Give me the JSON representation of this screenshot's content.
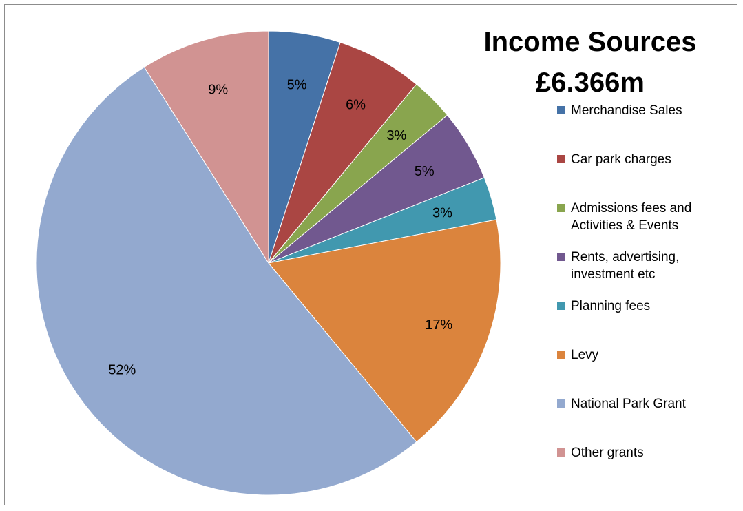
{
  "chart_data": {
    "type": "pie",
    "title_line1": "Income Sources",
    "title_line2": "£6.366m",
    "legend_position": "right",
    "slices": [
      {
        "name": "Merchandise Sales",
        "value": 5,
        "label": "5%",
        "color": "#4572A7"
      },
      {
        "name": "Car park charges",
        "value": 6,
        "label": "6%",
        "color": "#AA4643"
      },
      {
        "name": "Admissions fees and Activities & Events",
        "value": 3,
        "label": "3%",
        "color": "#89A54E"
      },
      {
        "name": "Rents, advertising, investment etc",
        "value": 5,
        "label": "5%",
        "color": "#71588F"
      },
      {
        "name": "Planning fees",
        "value": 3,
        "label": "3%",
        "color": "#4198AF"
      },
      {
        "name": "Levy",
        "value": 17,
        "label": "17%",
        "color": "#DB843D"
      },
      {
        "name": "National Park Grant",
        "value": 52,
        "label": "52%",
        "color": "#93A9CF"
      },
      {
        "name": "Other grants",
        "value": 9,
        "label": "9%",
        "color": "#D19392"
      }
    ]
  }
}
